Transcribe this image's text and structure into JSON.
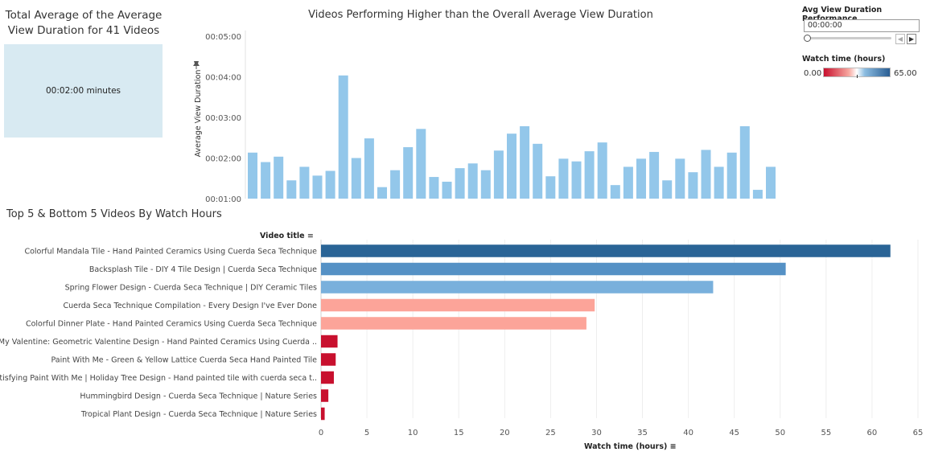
{
  "kpi": {
    "title": "Total Average of the Average View Duration for 41 Videos",
    "value": "00:02:00 minutes"
  },
  "filter": {
    "title": "Avg View Duration Performance",
    "value": "00:00:00"
  },
  "color_legend": {
    "title": "Watch time (hours)",
    "min": "0.00",
    "max": "65.00",
    "colors": [
      "#c8102e",
      "#f7a8a0",
      "#ffffff",
      "#8cbde1",
      "#2a5d93"
    ]
  },
  "chart_data": [
    {
      "type": "bar",
      "title": "Videos Performing Higher than the Overall Average View Duration",
      "ylabel": "Average View Duration",
      "ylim": [
        60,
        300
      ],
      "yticks": [
        60,
        120,
        180,
        240,
        300
      ],
      "ytick_labels": [
        "00:01:00",
        "00:02:00",
        "00:03:00",
        "00:04:00",
        "00:05:00"
      ],
      "values": [
        128,
        114,
        122,
        87,
        107,
        94,
        101,
        242,
        120,
        149,
        77,
        102,
        136,
        163,
        92,
        85,
        105,
        112,
        102,
        131,
        156,
        167,
        141,
        93,
        119,
        115,
        130,
        143,
        80,
        107,
        119,
        129,
        87,
        119,
        99,
        132,
        107,
        128,
        167,
        73,
        107
      ],
      "color": "#93c7ea",
      "grid": false
    },
    {
      "type": "bar",
      "orientation": "horizontal",
      "title": "Top 5  & Bottom 5 Videos By Watch Hours",
      "category_header": "Video title",
      "xlabel": "Watch time (hours)",
      "xlim": [
        0,
        65
      ],
      "xticks": [
        0,
        5,
        10,
        15,
        20,
        25,
        30,
        35,
        40,
        45,
        50,
        55,
        60,
        65
      ],
      "grid": true,
      "categories": [
        "Colorful Mandala Tile - Hand Painted Ceramics Using Cuerda Seca Technique",
        "Backsplash Tile - DIY 4 Tile Design | Cuerda Seca Technique",
        "Spring Flower Design - Cuerda Seca Technique | DIY Ceramic Tiles",
        "Cuerda Seca Technique Compilation - Every Design I've Ever Done",
        "Colorful Dinner Plate  - Hand Painted Ceramics Using Cuerda Seca Technique",
        "Be My Valentine: Geometric Valentine Design - Hand Painted Ceramics Using Cuerda ..",
        "Paint With Me - Green & Yellow Lattice Cuerda Seca Hand Painted Tile",
        "Satisfying Paint With Me | Holiday Tree Design  - Hand painted tile with cuerda seca t..",
        "Hummingbird Design  - Cuerda Seca Technique | Nature Series",
        "Tropical Plant Design  - Cuerda Seca Technique | Nature Series"
      ],
      "values": [
        62.0,
        50.6,
        42.7,
        29.8,
        28.9,
        1.8,
        1.6,
        1.4,
        0.8,
        0.4
      ],
      "colors": [
        "#2a6496",
        "#5591c5",
        "#79b0dc",
        "#fca499",
        "#fca499",
        "#c8102e",
        "#c8102e",
        "#c8102e",
        "#c8102e",
        "#c8102e"
      ]
    }
  ]
}
